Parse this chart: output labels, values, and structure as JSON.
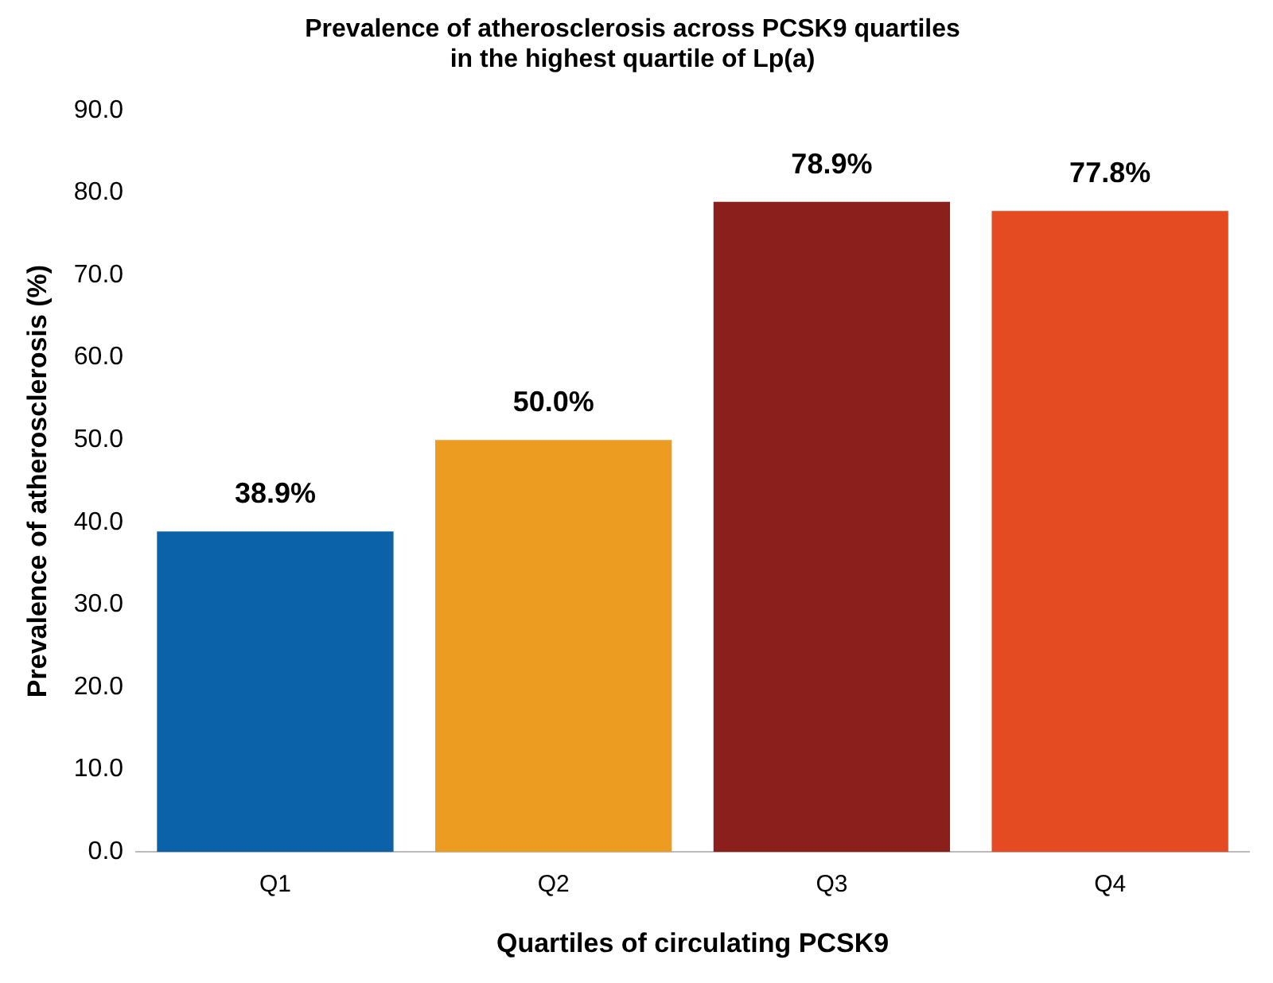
{
  "chart_data": {
    "type": "bar",
    "title": [
      "Prevalence of atherosclerosis across PCSK9 quartiles",
      "in the highest quartile of Lp(a)"
    ],
    "xlabel": "Quartiles of circulating PCSK9",
    "ylabel": "Prevalence of atherosclerosis (%)",
    "categories": [
      "Q1",
      "Q2",
      "Q3",
      "Q4"
    ],
    "values": [
      38.9,
      50.0,
      78.9,
      77.8
    ],
    "colors": [
      "#0b62a9",
      "#eb9c21",
      "#8a1f1c",
      "#e54b22"
    ],
    "value_labels": [
      "38.9%",
      "50.0%",
      "78.9%",
      "77.8%"
    ],
    "ylim": [
      0,
      90
    ],
    "yticks": [
      {
        "value": 0,
        "label": "0.0"
      },
      {
        "value": 10,
        "label": "10.0"
      },
      {
        "value": 20,
        "label": "20.0"
      },
      {
        "value": 30,
        "label": "30.0"
      },
      {
        "value": 40,
        "label": "40.0"
      },
      {
        "value": 50,
        "label": "50.0"
      },
      {
        "value": 60,
        "label": "60.0"
      },
      {
        "value": 70,
        "label": "70.0"
      },
      {
        "value": 80,
        "label": "80.0"
      },
      {
        "value": 90,
        "label": "90.0"
      }
    ],
    "grid": false,
    "legend": false
  }
}
